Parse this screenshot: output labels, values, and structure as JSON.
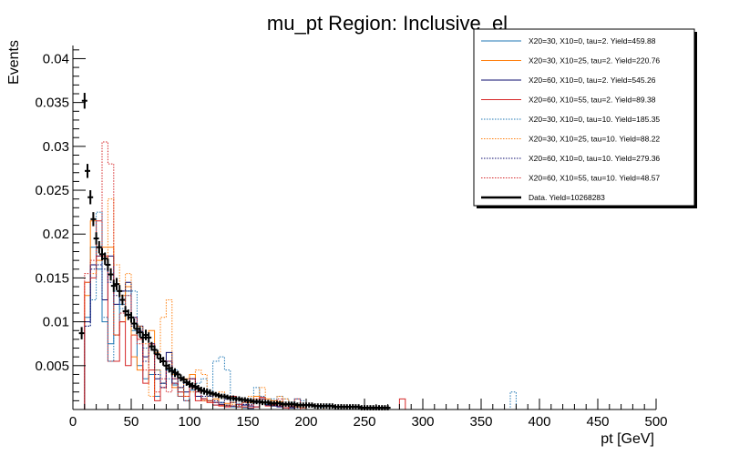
{
  "chart_data": {
    "type": "histogram",
    "title": "mu_pt Region: Inclusive_el",
    "xlabel": "pt [GeV]",
    "ylabel": "Events",
    "xlim": [
      0,
      500
    ],
    "ylim": [
      0,
      0.0415
    ],
    "grid": false,
    "legend_position": "top-right",
    "x_ticks": [
      0,
      50,
      100,
      150,
      200,
      250,
      300,
      350,
      400,
      450,
      500
    ],
    "y_ticks": [
      0.005,
      0.01,
      0.015,
      0.02,
      0.025,
      0.03,
      0.035,
      0.04
    ],
    "bin_edges": [
      0,
      5,
      10,
      15,
      20,
      25,
      30,
      35,
      40,
      45,
      50,
      55,
      60,
      65,
      70,
      75,
      80,
      85,
      90,
      95,
      100,
      105,
      110,
      115,
      120,
      125,
      130,
      135,
      140,
      145,
      150,
      155,
      160,
      165,
      170,
      175,
      180,
      185,
      190,
      195,
      200,
      205,
      210,
      215,
      220,
      225,
      230,
      235,
      240,
      245,
      250,
      255,
      260,
      265,
      270,
      275,
      280,
      285,
      290,
      295,
      300,
      305,
      310,
      315,
      320,
      325,
      330,
      335,
      340,
      345,
      350,
      355,
      360,
      365,
      370,
      375,
      380,
      385,
      390,
      395,
      400
    ],
    "series": [
      {
        "name": "X20=30, X10=0, tau=2. Yield=459.88",
        "color": "#1f77b4",
        "style": "solid",
        "values": [
          0,
          0,
          0.0105,
          0.0185,
          0.016,
          0.01,
          0.0075,
          0.0085,
          0.012,
          0.0135,
          0.009,
          0.005,
          0.0035,
          0.004,
          0.0015,
          0.003,
          0.0045,
          0.0028,
          0.002,
          0.001,
          0.0022,
          0.0015,
          0.0012,
          0.001,
          0.0005,
          0.0008,
          0.0004,
          0.0003,
          0,
          0.0002,
          0.0001,
          0.0003,
          0.0008,
          0.0006,
          0.0005,
          0.0004,
          0.0005,
          0.0002,
          0,
          0,
          0,
          0,
          0,
          0,
          0,
          0,
          0,
          0,
          0,
          0,
          0,
          0,
          0,
          0,
          0,
          0,
          0,
          0,
          0,
          0,
          0,
          0,
          0,
          0,
          0,
          0,
          0,
          0,
          0,
          0,
          0,
          0,
          0,
          0,
          0,
          0,
          0,
          0,
          0,
          0
        ]
      },
      {
        "name": "X20=30, X10=25, tau=2. Yield=220.76",
        "color": "#ff7f0e",
        "style": "solid",
        "values": [
          0,
          0,
          0.013,
          0.0215,
          0.017,
          0.0185,
          0.0185,
          0.0085,
          0.01,
          0.014,
          0.006,
          0.0045,
          0.0085,
          0.009,
          0.0045,
          0.003,
          0.0055,
          0.0025,
          0.0015,
          0.0035,
          0.004,
          0.0015,
          0.001,
          0.0008,
          0.0012,
          0.0005,
          0.0007,
          0.0008,
          0.0003,
          0,
          0.0008,
          0.0015,
          0.0012,
          0.0012,
          0.001,
          0.0009,
          0.0005,
          0.0003,
          0.0003,
          0.0002,
          0,
          0,
          0.0004,
          0,
          0,
          0,
          0,
          0,
          0,
          0,
          0,
          0,
          0,
          0,
          0,
          0,
          0,
          0,
          0,
          0,
          0,
          0,
          0,
          0,
          0,
          0,
          0,
          0,
          0,
          0,
          0,
          0,
          0,
          0,
          0,
          0,
          0,
          0,
          0,
          0
        ]
      },
      {
        "name": "X20=60, X10=0, tau=2. Yield=545.26",
        "color": "#0b0b6e",
        "style": "solid",
        "values": [
          0,
          0,
          0.01,
          0.0165,
          0.0175,
          0.0125,
          0.0175,
          0.012,
          0.0135,
          0.0145,
          0.0105,
          0.0095,
          0.006,
          0.0075,
          0.0035,
          0.003,
          0.0065,
          0.003,
          0.0025,
          0.002,
          0.0035,
          0.0015,
          0.0012,
          0.001,
          0.0008,
          0.0006,
          0.0005,
          0.0004,
          0.0003,
          0.0005,
          0.0004,
          0.0003,
          0.0012,
          0.0005,
          0.0004,
          0.0003,
          0.0002,
          0.0002,
          0,
          0,
          0,
          0,
          0,
          0,
          0,
          0,
          0,
          0,
          0,
          0,
          0,
          0,
          0,
          0,
          0,
          0,
          0,
          0,
          0,
          0,
          0,
          0,
          0,
          0,
          0,
          0,
          0,
          0,
          0,
          0,
          0,
          0,
          0,
          0,
          0,
          0,
          0,
          0,
          0,
          0
        ]
      },
      {
        "name": "X20=60, X10=55, tau=2. Yield=89.38",
        "color": "#d62728",
        "style": "solid",
        "values": [
          0,
          0,
          0.0145,
          0.015,
          0.0215,
          0.0175,
          0.0055,
          0.0055,
          0.01,
          0.005,
          0.0085,
          0.008,
          0.003,
          0.0045,
          0.001,
          0.0025,
          0.0055,
          0.0035,
          0.002,
          0.0015,
          0.0025,
          0.001,
          0.0012,
          0.0008,
          0.0005,
          0.0004,
          0.0003,
          0.0015,
          0.0006,
          0.0003,
          0.0002,
          0.0003,
          0.0014,
          0.0004,
          0.0005,
          0.0004,
          0.0002,
          0,
          0.0012,
          0,
          0,
          0,
          0,
          0,
          0,
          0,
          0,
          0,
          0,
          0,
          0,
          0,
          0,
          0,
          0,
          0,
          0.0012,
          0,
          0,
          0,
          0,
          0,
          0,
          0,
          0,
          0,
          0,
          0,
          0,
          0,
          0,
          0,
          0,
          0,
          0,
          0,
          0,
          0,
          0,
          0
        ]
      },
      {
        "name": "X20=30, X10=0, tau=10. Yield=185.35",
        "color": "#1f77b4",
        "style": "dotted",
        "values": [
          0,
          0,
          0.0095,
          0.0125,
          0.0225,
          0.0105,
          0.0055,
          0.0135,
          0.0115,
          0.013,
          0.0135,
          0.0085,
          0.007,
          0.004,
          0.0045,
          0.003,
          0.0035,
          0.0045,
          0.0015,
          0.003,
          0.0025,
          0.003,
          0.0035,
          0.0015,
          0.0055,
          0.006,
          0.0045,
          0.001,
          0.0007,
          0.0008,
          0.0012,
          0.0025,
          0.0015,
          0.001,
          0.0012,
          0.0015,
          0.0012,
          0.0008,
          0.0012,
          0.001,
          0.0005,
          0.0004,
          0.0003,
          0.0005,
          0,
          0,
          0,
          0,
          0,
          0,
          0,
          0,
          0,
          0,
          0,
          0,
          0,
          0,
          0,
          0,
          0,
          0,
          0,
          0,
          0,
          0,
          0,
          0,
          0,
          0,
          0,
          0,
          0,
          0,
          0,
          0.002,
          0,
          0,
          0
        ]
      },
      {
        "name": "X20=30, X10=25, tau=10. Yield=88.22",
        "color": "#ff7f0e",
        "style": "dotted",
        "values": [
          0,
          0,
          0.0145,
          0.0155,
          0.017,
          0.017,
          0.024,
          0.0165,
          0.013,
          0.0155,
          0.0085,
          0.0095,
          0.0075,
          0.0015,
          0.0065,
          0.0105,
          0.0125,
          0.004,
          0.0025,
          0.0015,
          0.002,
          0.0045,
          0.004,
          0.001,
          0.0015,
          0.002,
          0.0005,
          0.0006,
          0.0004,
          0.0008,
          0.0015,
          0.0012,
          0.0025,
          0.001,
          0.0008,
          0.0015,
          0.0012,
          0.0008,
          0.0005,
          0.0005,
          0,
          0,
          0,
          0,
          0,
          0,
          0,
          0,
          0,
          0,
          0,
          0,
          0,
          0,
          0,
          0,
          0,
          0,
          0,
          0,
          0,
          0,
          0,
          0,
          0,
          0,
          0,
          0,
          0,
          0,
          0,
          0,
          0,
          0,
          0,
          0,
          0,
          0,
          0
        ]
      },
      {
        "name": "X20=60, X10=0, tau=10. Yield=279.36",
        "color": "#0b0b6e",
        "style": "dotted",
        "values": [
          0,
          0,
          0.0095,
          0.016,
          0.0165,
          0.016,
          0.0145,
          0.013,
          0.0135,
          0.0135,
          0.0095,
          0.009,
          0.0055,
          0.007,
          0.004,
          0.0025,
          0.0055,
          0.0035,
          0.0025,
          0.003,
          0.0035,
          0.002,
          0.0015,
          0.0015,
          0.001,
          0.0008,
          0.0012,
          0.0008,
          0.0005,
          0.0006,
          0.0006,
          0.0008,
          0.0008,
          0.0005,
          0.0006,
          0.0004,
          0.0004,
          0.0003,
          0.0002,
          0.0002,
          0,
          0,
          0,
          0,
          0,
          0,
          0,
          0,
          0,
          0,
          0,
          0,
          0,
          0,
          0,
          0,
          0,
          0,
          0,
          0,
          0,
          0,
          0,
          0,
          0,
          0,
          0,
          0,
          0,
          0,
          0,
          0,
          0,
          0,
          0,
          0,
          0,
          0,
          0
        ]
      },
      {
        "name": "X20=60, X10=55, tau=10. Yield=48.57",
        "color": "#d62728",
        "style": "dotted",
        "values": [
          0,
          0,
          0.0155,
          0.017,
          0.0175,
          0.0305,
          0.028,
          0.0085,
          0.011,
          0.013,
          0.0105,
          0.0075,
          0.0045,
          0.0075,
          0.002,
          0.0035,
          0.002,
          0.003,
          0.0015,
          0.001,
          0.0035,
          0.002,
          0.001,
          0.001,
          0.0008,
          0.0005,
          0.0004,
          0.0004,
          0.0003,
          0.0008,
          0.0005,
          0.0012,
          0.0012,
          0.0008,
          0.0006,
          0.0012,
          0.0008,
          0.0004,
          0.0003,
          0.0002,
          0,
          0,
          0,
          0,
          0,
          0,
          0,
          0,
          0,
          0,
          0,
          0,
          0,
          0,
          0,
          0,
          0,
          0,
          0,
          0,
          0,
          0,
          0,
          0,
          0,
          0,
          0,
          0,
          0,
          0,
          0,
          0,
          0,
          0,
          0,
          0,
          0,
          0,
          0
        ]
      }
    ],
    "data_series": {
      "name": "Data. Yield=10268283",
      "color": "#000000",
      "x": [
        7.5,
        10,
        12.5,
        15,
        17.5,
        20,
        22.5,
        25,
        27.5,
        30,
        32.5,
        35,
        37.5,
        40,
        42.5,
        45,
        47.5,
        50,
        52.5,
        55,
        57.5,
        60,
        62.5,
        65,
        67.5,
        70,
        72.5,
        75,
        77.5,
        80,
        82.5,
        85,
        87.5,
        90,
        92.5,
        95,
        97.5,
        100,
        102.5,
        105,
        107.5,
        110,
        112.5,
        115,
        117.5,
        120,
        122.5,
        125,
        127.5,
        130,
        132.5,
        135,
        137.5,
        140,
        142.5,
        145,
        147.5,
        150,
        152.5,
        155,
        157.5,
        160,
        162.5,
        165,
        167.5,
        170,
        172.5,
        175,
        177.5,
        180,
        182.5,
        185,
        187.5,
        190,
        192.5,
        195,
        197.5,
        200,
        202.5,
        205,
        207.5,
        210,
        212.5,
        215,
        217.5,
        220,
        222.5,
        225,
        227.5,
        230,
        232.5,
        235,
        237.5,
        240,
        242.5,
        245,
        247.5,
        250,
        252.5,
        255,
        257.5,
        260,
        262.5,
        265,
        267.5,
        270
      ],
      "y": [
        0.0087,
        0.0352,
        0.0272,
        0.0242,
        0.0217,
        0.0195,
        0.0185,
        0.0177,
        0.0172,
        0.0165,
        0.0154,
        0.0141,
        0.0143,
        0.0135,
        0.0125,
        0.0112,
        0.0108,
        0.0105,
        0.0098,
        0.0092,
        0.0088,
        0.0082,
        0.0085,
        0.0082,
        0.0072,
        0.0068,
        0.0063,
        0.0058,
        0.0055,
        0.005,
        0.0047,
        0.0044,
        0.0042,
        0.004,
        0.0036,
        0.0034,
        0.0031,
        0.0029,
        0.0027,
        0.0026,
        0.0024,
        0.0022,
        0.0021,
        0.002,
        0.0019,
        0.0018,
        0.0017,
        0.0016,
        0.0015,
        0.0015,
        0.0014,
        0.0013,
        0.0013,
        0.0012,
        0.0012,
        0.0011,
        0.0011,
        0.001,
        0.001,
        0.0009,
        0.0009,
        0.0009,
        0.0008,
        0.0008,
        0.0008,
        0.0007,
        0.0007,
        0.0007,
        0.0007,
        0.0006,
        0.0006,
        0.0006,
        0.0006,
        0.0006,
        0.0005,
        0.0005,
        0.0005,
        0.0005,
        0.0005,
        0.0005,
        0.0004,
        0.0004,
        0.0004,
        0.0004,
        0.0004,
        0.0004,
        0.0004,
        0.0003,
        0.0003,
        0.0003,
        0.0003,
        0.0003,
        0.0003,
        0.0003,
        0.0003,
        0.0003,
        0.0002,
        0.0002,
        0.0002,
        0.0002,
        0.0002,
        0.0002,
        0.0002,
        0.0002,
        0.0002,
        0.0002
      ],
      "err": [
        0.0007,
        0.0009,
        0.0008,
        0.0008,
        0.0008,
        0.0007,
        0.0007,
        0.0007,
        0.0007,
        0.0007,
        0.0007,
        0.0007,
        0.0007,
        0.0007,
        0.0006,
        0.0006,
        0.0006,
        0.0006,
        0.0006,
        0.0006,
        0.0006,
        0.0006,
        0.0006,
        0.0006,
        0.0005,
        0.0005,
        0.0005,
        0.0005,
        0.0005,
        0.0005,
        0.0005,
        0.0005,
        0.0005,
        0.0004,
        0.0004,
        0.0004,
        0.0004,
        0.0004,
        0.0004,
        0.0004,
        0.0004,
        0.0004,
        0.0004,
        0.0004,
        0.0004,
        0.0003,
        0.0003,
        0.0003,
        0.0003,
        0.0003,
        0.0003,
        0.0003,
        0.0003,
        0.0003,
        0.0003,
        0.0003,
        0.0003,
        0.0003,
        0.0003,
        0.0003,
        0.0003,
        0.0003,
        0.0003,
        0.0003,
        0.0003,
        0.0003,
        0.0003,
        0.0003,
        0.0003,
        0.0003,
        0.0003,
        0.0003,
        0.0003,
        0.0003,
        0.0003,
        0.0003,
        0.0003,
        0.0003,
        0.0003,
        0.0003,
        0.0003,
        0.0003,
        0.0003,
        0.0003,
        0.0003,
        0.0003,
        0.0003,
        0.0003,
        0.0003,
        0.0003,
        0.0003,
        0.0003,
        0.0003,
        0.0003,
        0.0003,
        0.0003,
        0.0003,
        0.0003,
        0.0003,
        0.0003,
        0.0003,
        0.0003,
        0.0003,
        0.0003,
        0.0003,
        0.0003
      ]
    }
  }
}
